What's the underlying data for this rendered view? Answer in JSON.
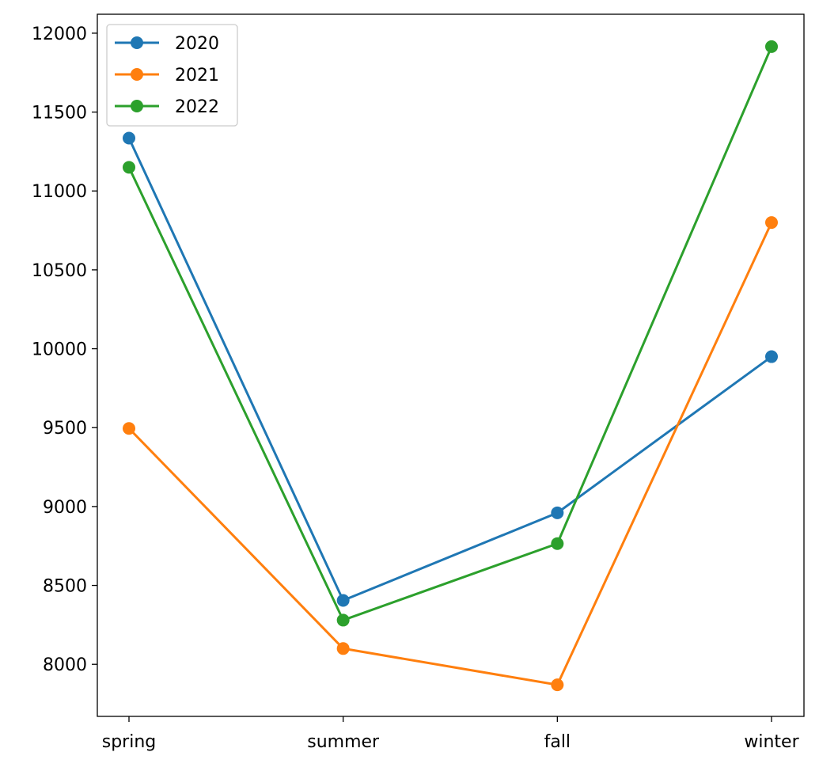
{
  "chart_data": {
    "type": "line",
    "title": "",
    "xlabel": "",
    "ylabel": "",
    "categories": [
      "spring",
      "summer",
      "fall",
      "winter"
    ],
    "yticks": [
      8000,
      8500,
      9000,
      9500,
      10000,
      10500,
      11000,
      11500,
      12000
    ],
    "ylim": [
      7670,
      12120
    ],
    "grid": false,
    "legend": "top-left",
    "series": [
      {
        "name": "2020",
        "color": "#1f77b4",
        "values": [
          11335,
          8405,
          8960,
          9950
        ]
      },
      {
        "name": "2021",
        "color": "#ff7f0e",
        "values": [
          9495,
          8100,
          7870,
          10800
        ]
      },
      {
        "name": "2022",
        "color": "#2ca02c",
        "values": [
          11150,
          8280,
          8765,
          11915
        ]
      }
    ]
  }
}
